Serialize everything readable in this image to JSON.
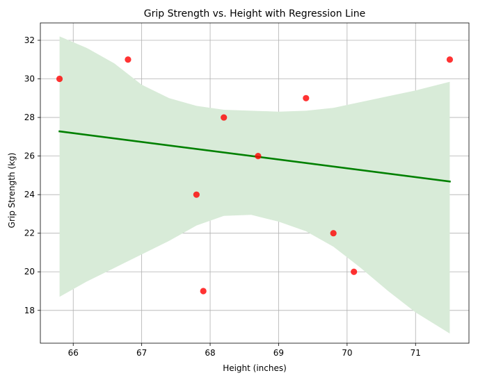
{
  "chart_data": {
    "type": "scatter",
    "title": "Grip Strength vs. Height with Regression Line",
    "xlabel": "Height (inches)",
    "ylabel": "Grip Strength (kg)",
    "xlim": [
      65.52,
      71.78
    ],
    "ylim": [
      16.3,
      32.9
    ],
    "xticks": [
      66,
      67,
      68,
      69,
      70,
      71
    ],
    "yticks": [
      18,
      20,
      22,
      24,
      26,
      28,
      30,
      32
    ],
    "grid": true,
    "points": [
      {
        "x": 65.8,
        "y": 30
      },
      {
        "x": 66.8,
        "y": 31
      },
      {
        "x": 67.8,
        "y": 24
      },
      {
        "x": 67.9,
        "y": 19
      },
      {
        "x": 68.2,
        "y": 28
      },
      {
        "x": 68.7,
        "y": 26
      },
      {
        "x": 69.4,
        "y": 29
      },
      {
        "x": 69.8,
        "y": 22
      },
      {
        "x": 70.1,
        "y": 20
      },
      {
        "x": 71.5,
        "y": 31
      }
    ],
    "regression_line": {
      "x": [
        65.8,
        71.5
      ],
      "y": [
        27.28,
        24.68
      ]
    },
    "confidence_band": {
      "x": [
        65.8,
        66.2,
        66.6,
        67.0,
        67.4,
        67.8,
        68.2,
        68.6,
        69.0,
        69.4,
        69.8,
        70.2,
        70.6,
        71.0,
        71.5
      ],
      "upper": [
        32.2,
        31.6,
        30.8,
        29.7,
        29.0,
        28.6,
        28.4,
        28.35,
        28.3,
        28.35,
        28.5,
        28.8,
        29.1,
        29.4,
        29.85
      ],
      "lower": [
        18.7,
        19.5,
        20.2,
        20.9,
        21.6,
        22.4,
        22.9,
        22.95,
        22.6,
        22.1,
        21.3,
        20.2,
        19.0,
        17.9,
        16.8
      ]
    },
    "colors": {
      "points": "#ff0000",
      "regression_line": "#008000",
      "confidence_band": "#d8ebd8",
      "grid": "#b0b0b0"
    }
  }
}
